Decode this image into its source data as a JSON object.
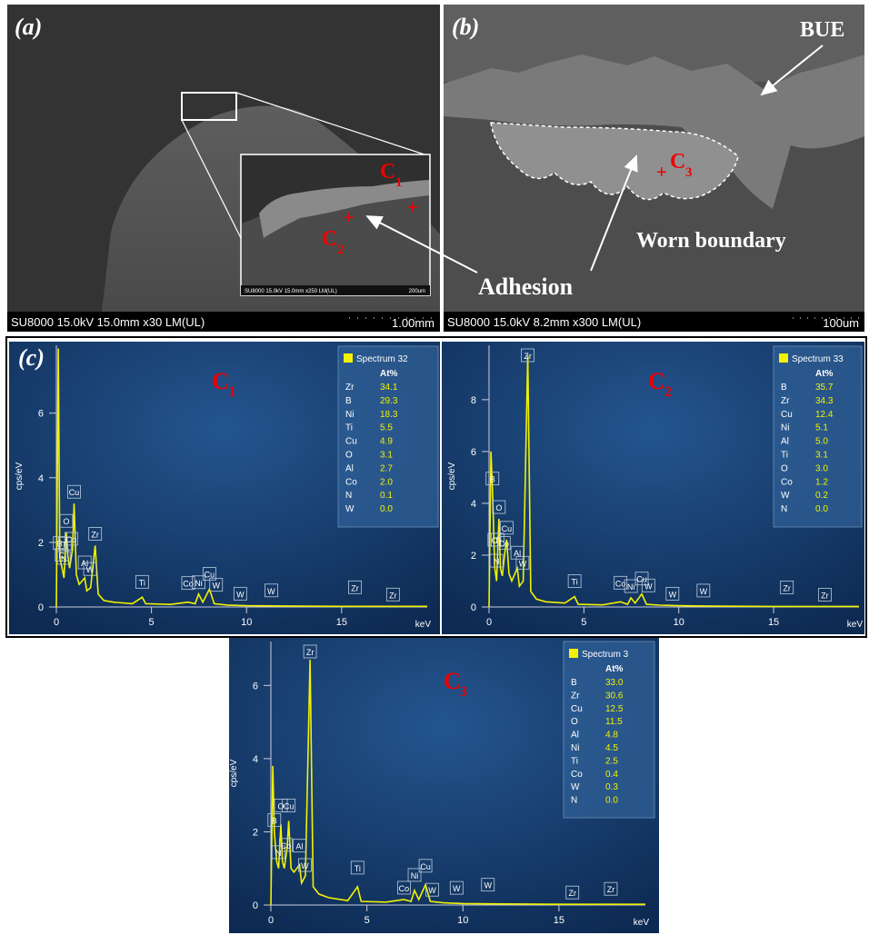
{
  "panel_a": {
    "label": "(a)",
    "info": "SU8000 15.0kV 15.0mm x30 LM(UL)",
    "scale": "1.00mm",
    "inset_info": "SU8000 15.0kV 15.0mm x250 LM(UL)",
    "inset_scale": "200um",
    "points": [
      {
        "label": "C",
        "sub": "1"
      },
      {
        "label": "C",
        "sub": "2"
      }
    ]
  },
  "panel_b": {
    "label": "(b)",
    "info": "SU8000 15.0kV 8.2mm x300 LM(UL)",
    "scale": "100um",
    "points": [
      {
        "label": "C",
        "sub": "3"
      }
    ],
    "bue": "BUE",
    "worn": "Worn boundary"
  },
  "adhesion": "Adhesion",
  "panel_c_label": "(c)",
  "chart_data": [
    {
      "type": "line",
      "name": "C",
      "name_sub": "1",
      "color": "#f2f200",
      "x": [
        0,
        0.1,
        0.18,
        0.3,
        0.4,
        0.52,
        0.6,
        0.7,
        0.85,
        0.93,
        1.05,
        1.2,
        1.49,
        1.6,
        1.8,
        2.04,
        2.2,
        2.5,
        3,
        4,
        4.51,
        4.7,
        6,
        6.93,
        7.3,
        7.48,
        7.7,
        8.05,
        8.3,
        9,
        10,
        12,
        15,
        18,
        19.5
      ],
      "values": [
        0,
        8,
        1.5,
        1.2,
        0.9,
        2.3,
        1.6,
        1.2,
        1.8,
        3.2,
        1.0,
        0.7,
        0.9,
        0.5,
        0.6,
        1.9,
        0.4,
        0.2,
        0.15,
        0.1,
        0.3,
        0.1,
        0.08,
        0.15,
        0.1,
        0.4,
        0.15,
        0.55,
        0.1,
        0.06,
        0.04,
        0.03,
        0.02,
        0.02,
        0.02
      ],
      "xlim": [
        0,
        19.5
      ],
      "xticks": [
        0,
        5,
        10,
        15
      ],
      "ylim": [
        0,
        8.1
      ],
      "yticks": [
        0,
        2,
        4,
        6
      ],
      "xlabel": "keV",
      "ylabel": "cps/eV",
      "peaks": [
        {
          "label": "C",
          "x": 0.28
        },
        {
          "label": "B",
          "x": 0.18
        },
        {
          "label": "N",
          "x": 0.39
        },
        {
          "label": "O",
          "x": 0.52
        },
        {
          "label": "Ti",
          "x": 0.45
        },
        {
          "label": "Co",
          "x": 0.78
        },
        {
          "label": "Cu",
          "x": 0.93
        },
        {
          "label": "Al",
          "x": 1.49
        },
        {
          "label": "W",
          "x": 1.77
        },
        {
          "label": "Zr",
          "x": 2.04
        },
        {
          "label": "Ti",
          "x": 4.51
        },
        {
          "label": "Co",
          "x": 6.93
        },
        {
          "label": "Ni",
          "x": 7.48
        },
        {
          "label": "Cu",
          "x": 8.05
        },
        {
          "label": "W",
          "x": 8.4
        },
        {
          "label": "W",
          "x": 9.67
        },
        {
          "label": "W",
          "x": 11.3
        },
        {
          "label": "Zr",
          "x": 15.7
        },
        {
          "label": "Zr",
          "x": 17.7
        }
      ],
      "legend": {
        "title": "Spectrum 32",
        "column": "At%",
        "rows": [
          [
            "Zr",
            "34.1"
          ],
          [
            "B",
            "29.3"
          ],
          [
            "Ni",
            "18.3"
          ],
          [
            "Ti",
            "5.5"
          ],
          [
            "Cu",
            "4.9"
          ],
          [
            "O",
            "3.1"
          ],
          [
            "Al",
            "2.7"
          ],
          [
            "Co",
            "2.0"
          ],
          [
            "N",
            "0.1"
          ],
          [
            "W",
            "0.0"
          ]
        ]
      }
    },
    {
      "type": "line",
      "name": "C",
      "name_sub": "2",
      "color": "#f2f200",
      "x": [
        0,
        0.1,
        0.18,
        0.3,
        0.4,
        0.52,
        0.6,
        0.7,
        0.85,
        0.93,
        1.05,
        1.2,
        1.49,
        1.6,
        1.8,
        2.04,
        2.2,
        2.5,
        3,
        4,
        4.51,
        4.7,
        6,
        6.93,
        7.3,
        7.48,
        7.7,
        8.05,
        8.3,
        9,
        10,
        12,
        15,
        18,
        19.5
      ],
      "values": [
        0,
        6,
        4.5,
        1.5,
        1.0,
        3.4,
        1.5,
        1.2,
        2.2,
        2.6,
        1.3,
        1.0,
        1.5,
        0.8,
        1.0,
        9.7,
        0.6,
        0.3,
        0.2,
        0.15,
        0.4,
        0.1,
        0.08,
        0.2,
        0.1,
        0.35,
        0.15,
        0.5,
        0.1,
        0.07,
        0.05,
        0.03,
        0.02,
        0.02,
        0.02
      ],
      "xlim": [
        0,
        19.5
      ],
      "xticks": [
        0,
        5,
        10,
        15
      ],
      "ylim": [
        0,
        10.1
      ],
      "yticks": [
        0,
        2,
        4,
        6,
        8
      ],
      "xlabel": "keV",
      "ylabel": "cps/eV",
      "peaks": [
        {
          "label": "B",
          "x": 0.18
        },
        {
          "label": "C",
          "x": 0.28
        },
        {
          "label": "N",
          "x": 0.39
        },
        {
          "label": "O",
          "x": 0.52
        },
        {
          "label": "Ti",
          "x": 0.45
        },
        {
          "label": "Co",
          "x": 0.78
        },
        {
          "label": "Cu",
          "x": 0.93
        },
        {
          "label": "Al",
          "x": 1.49
        },
        {
          "label": "W",
          "x": 1.77
        },
        {
          "label": "Zr",
          "x": 2.04
        },
        {
          "label": "Ti",
          "x": 4.51
        },
        {
          "label": "Co",
          "x": 6.93
        },
        {
          "label": "Ni",
          "x": 7.48
        },
        {
          "label": "Cu",
          "x": 8.05
        },
        {
          "label": "W",
          "x": 8.4
        },
        {
          "label": "W",
          "x": 9.67
        },
        {
          "label": "W",
          "x": 11.3
        },
        {
          "label": "Zr",
          "x": 15.7
        },
        {
          "label": "Zr",
          "x": 17.7
        }
      ],
      "legend": {
        "title": "Spectrum 33",
        "column": "At%",
        "rows": [
          [
            "B",
            "35.7"
          ],
          [
            "Zr",
            "34.3"
          ],
          [
            "Cu",
            "12.4"
          ],
          [
            "Ni",
            "5.1"
          ],
          [
            "Al",
            "5.0"
          ],
          [
            "Ti",
            "3.1"
          ],
          [
            "O",
            "3.0"
          ],
          [
            "Co",
            "1.2"
          ],
          [
            "W",
            "0.2"
          ],
          [
            "N",
            "0.0"
          ]
        ]
      }
    },
    {
      "type": "line",
      "name": "C",
      "name_sub": "3",
      "color": "#f2f200",
      "x": [
        0,
        0.1,
        0.18,
        0.3,
        0.4,
        0.52,
        0.6,
        0.7,
        0.85,
        0.93,
        1.05,
        1.2,
        1.49,
        1.6,
        1.8,
        2.04,
        2.2,
        2.5,
        3,
        4,
        4.51,
        4.7,
        6,
        6.93,
        7.3,
        7.48,
        7.7,
        8.05,
        8.3,
        9,
        10,
        12,
        15,
        18,
        19.5
      ],
      "values": [
        0,
        3.8,
        2.0,
        1.2,
        1.0,
        2.2,
        1.2,
        1.0,
        1.6,
        2.3,
        1.0,
        0.9,
        1.1,
        0.6,
        0.8,
        6.7,
        0.5,
        0.3,
        0.2,
        0.12,
        0.5,
        0.1,
        0.08,
        0.15,
        0.1,
        0.4,
        0.15,
        0.55,
        0.1,
        0.06,
        0.04,
        0.03,
        0.02,
        0.02,
        0.02
      ],
      "xlim": [
        0,
        19.5
      ],
      "xticks": [
        0,
        5,
        10,
        15
      ],
      "ylim": [
        0,
        7.2
      ],
      "yticks": [
        0,
        2,
        4,
        6
      ],
      "xlabel": "keV",
      "ylabel": "cps/eV",
      "peaks": [
        {
          "label": "B",
          "x": 0.18
        },
        {
          "label": "N",
          "x": 0.39
        },
        {
          "label": "O",
          "x": 0.52
        },
        {
          "label": "Co",
          "x": 0.78
        },
        {
          "label": "Cu",
          "x": 0.93
        },
        {
          "label": "Al",
          "x": 1.49
        },
        {
          "label": "W",
          "x": 1.77
        },
        {
          "label": "Zr",
          "x": 2.04
        },
        {
          "label": "Ti",
          "x": 4.51
        },
        {
          "label": "Co",
          "x": 6.93
        },
        {
          "label": "Ni",
          "x": 7.48
        },
        {
          "label": "Cu",
          "x": 8.05
        },
        {
          "label": "W",
          "x": 8.4
        },
        {
          "label": "W",
          "x": 9.67
        },
        {
          "label": "W",
          "x": 11.3
        },
        {
          "label": "Zr",
          "x": 15.7
        },
        {
          "label": "Zr",
          "x": 17.7
        }
      ],
      "legend": {
        "title": "Spectrum 3",
        "column": "At%",
        "rows": [
          [
            "B",
            "33.0"
          ],
          [
            "Zr",
            "30.6"
          ],
          [
            "Cu",
            "12.5"
          ],
          [
            "O",
            "11.5"
          ],
          [
            "Al",
            "4.8"
          ],
          [
            "Ni",
            "4.5"
          ],
          [
            "Ti",
            "2.5"
          ],
          [
            "Co",
            "0.4"
          ],
          [
            "W",
            "0.3"
          ],
          [
            "N",
            "0.0"
          ]
        ]
      }
    }
  ]
}
